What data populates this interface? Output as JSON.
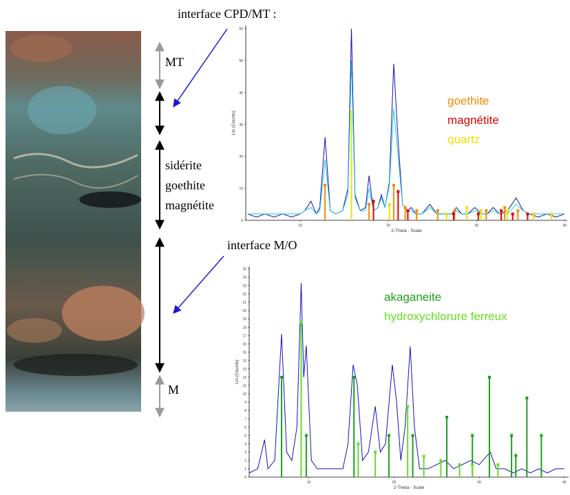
{
  "annotations": {
    "interface_top": "interface CPD/MT :",
    "mt": "MT",
    "layers": [
      "sidérite",
      "goethite",
      "magnétite"
    ],
    "interface_bottom": "interface M/O",
    "m": "M"
  },
  "chart_data": [
    {
      "type": "line",
      "xlabel": "2-Theta - Scale",
      "ylabel": "Lin (Counts)",
      "xlim": [
        3.8,
        40.3
      ],
      "ylim": [
        0,
        61
      ],
      "xticks": [
        10,
        20,
        30,
        40
      ],
      "yticks": [
        0,
        10,
        20,
        30,
        40,
        50,
        60
      ],
      "legend": "right",
      "series": [
        {
          "style": "line",
          "color": "#1010b0",
          "x": [
            4,
            5,
            6,
            7,
            8,
            9,
            10,
            10.5,
            11.2,
            11.8,
            12.2,
            12.8,
            13.4,
            14,
            14.8,
            15.4,
            15.8,
            16.2,
            16.8,
            17.4,
            17.8,
            18.3,
            18.8,
            19.2,
            19.6,
            20.1,
            20.6,
            21.1,
            21.6,
            22.2,
            22.6,
            23.1,
            23.8,
            24.7,
            25.5,
            26.5,
            27.2,
            27.7,
            28.3,
            29,
            29.8,
            30.6,
            31.2,
            31.9,
            32.6,
            33.5,
            34.5,
            35.3,
            36,
            37,
            38,
            39,
            40
          ],
          "values": [
            2,
            1,
            2,
            1,
            2,
            1,
            2,
            3,
            6,
            2,
            4,
            26,
            3,
            2,
            3,
            10,
            60,
            8,
            3,
            4,
            14,
            3,
            4,
            8,
            4,
            12,
            49,
            25,
            5,
            3,
            4,
            2,
            2,
            5,
            2,
            2,
            2,
            4,
            2,
            2,
            4,
            2,
            2,
            4,
            2,
            3,
            7,
            3,
            2,
            1,
            2,
            1,
            2
          ]
        },
        {
          "style": "line",
          "color": "#20c8e0",
          "x": [
            4,
            5,
            6,
            7,
            8,
            9,
            10,
            10.5,
            11.2,
            11.8,
            12.2,
            12.8,
            13.4,
            14,
            14.8,
            15.4,
            15.8,
            16.2,
            16.8,
            17.4,
            17.8,
            18.3,
            18.8,
            19.2,
            19.6,
            20.1,
            20.6,
            21.1,
            21.6,
            22.2,
            22.6,
            23.1,
            23.8,
            24.7,
            25.5,
            26.5,
            27.2,
            27.7,
            28.3,
            29,
            29.8,
            30.6,
            31.2,
            31.9,
            32.6,
            33.5,
            34.5,
            35.3,
            36,
            37,
            38,
            39,
            40
          ],
          "values": [
            2,
            2,
            2,
            2,
            2,
            2,
            2,
            3,
            4,
            2,
            3,
            19,
            3,
            2,
            3,
            8,
            50,
            7,
            3,
            3,
            10,
            3,
            4,
            7,
            4,
            11,
            35,
            20,
            5,
            3,
            3,
            2,
            2,
            4,
            2,
            2,
            2,
            3,
            2,
            2,
            3,
            2,
            2,
            3,
            2,
            2,
            5,
            3,
            2,
            2,
            2,
            2,
            2
          ]
        },
        {
          "style": "stem",
          "name": "goethite",
          "color": "#f08c00",
          "x": [
            12.8,
            17.8,
            20.6,
            21.9,
            23.2,
            25.6,
            27.5,
            31.1,
            33.2,
            34.7,
            36.5
          ],
          "values": [
            11,
            5,
            11,
            4,
            3,
            3,
            3,
            3,
            4,
            3,
            2
          ]
        },
        {
          "style": "stem",
          "name": "magnétite",
          "color": "#e00000",
          "x": [
            18.3,
            21.1,
            22.2,
            27.4,
            30.2,
            32.8,
            34.1,
            35.8
          ],
          "values": [
            6,
            9,
            3,
            2,
            2,
            3,
            2,
            2
          ]
        },
        {
          "style": "stem",
          "name": "quartz",
          "color": "#f0e000",
          "x": [
            15.8,
            20.1,
            26.6,
            28.9,
            30.5,
            33.5,
            36.5,
            38.5
          ],
          "values": [
            34,
            5,
            2,
            4,
            3,
            3,
            2,
            2
          ]
        }
      ]
    },
    {
      "type": "line",
      "xlabel": "2-Theta - Scale",
      "ylabel": "Lin (Counts)",
      "xlim": [
        3,
        40.5
      ],
      "ylim": [
        0,
        25.3
      ],
      "xticks": [
        10,
        20,
        30,
        40
      ],
      "yticks": [
        0,
        1,
        2,
        3,
        4,
        5,
        6,
        7,
        8,
        9,
        10,
        11,
        12,
        13,
        14,
        15,
        16,
        17,
        18,
        19,
        20,
        21,
        22,
        23,
        24,
        25
      ],
      "legend": "right",
      "series": [
        {
          "style": "line",
          "color": "#1010c0",
          "x": [
            3,
            4,
            4.8,
            5.2,
            6,
            6.8,
            7.4,
            8,
            8.6,
            9.1,
            9.4,
            9.7,
            10.3,
            11,
            12,
            13,
            14,
            14.6,
            15.2,
            15.7,
            16.3,
            17,
            17.8,
            18.4,
            19,
            19.8,
            20.3,
            20.8,
            21.3,
            21.9,
            22.4,
            23,
            24,
            25,
            26,
            27,
            28,
            29,
            30,
            31.3,
            32,
            33,
            34,
            35,
            36,
            37,
            38,
            39,
            40
          ],
          "values": [
            0.5,
            1,
            4.5,
            1,
            2,
            17.2,
            3,
            2,
            6,
            23.3,
            12,
            15.8,
            2,
            1,
            1,
            1,
            1,
            4,
            13.5,
            11,
            2,
            3,
            8.5,
            3,
            4,
            13.5,
            9,
            2,
            6,
            15.7,
            6,
            1,
            1,
            1.5,
            2,
            1,
            1.5,
            2,
            1.5,
            3,
            1,
            1,
            0.5,
            1,
            0.5,
            1,
            0.5,
            1,
            1
          ]
        },
        {
          "style": "stem",
          "name": "akaganeite",
          "color": "#1aa01a",
          "x": [
            6.8,
            9.1,
            9.7,
            15.3,
            19.4,
            22.2,
            26.2,
            29.2,
            31.2,
            33.8,
            34.3,
            35.6,
            37.3
          ],
          "values": [
            12,
            18.6,
            5,
            12,
            5,
            5,
            7.2,
            5,
            12,
            5,
            2.6,
            9.5,
            5
          ]
        },
        {
          "style": "stem",
          "name": "hydroxychlorure ferreux",
          "color": "#66dd22",
          "x": [
            9.1,
            15.8,
            17.8,
            21.6,
            23.5,
            25.5,
            27.7,
            29.2,
            32.2
          ],
          "values": [
            18.6,
            4,
            3,
            8.5,
            2.5,
            2,
            1.5,
            1.5,
            1.5
          ]
        }
      ]
    }
  ]
}
